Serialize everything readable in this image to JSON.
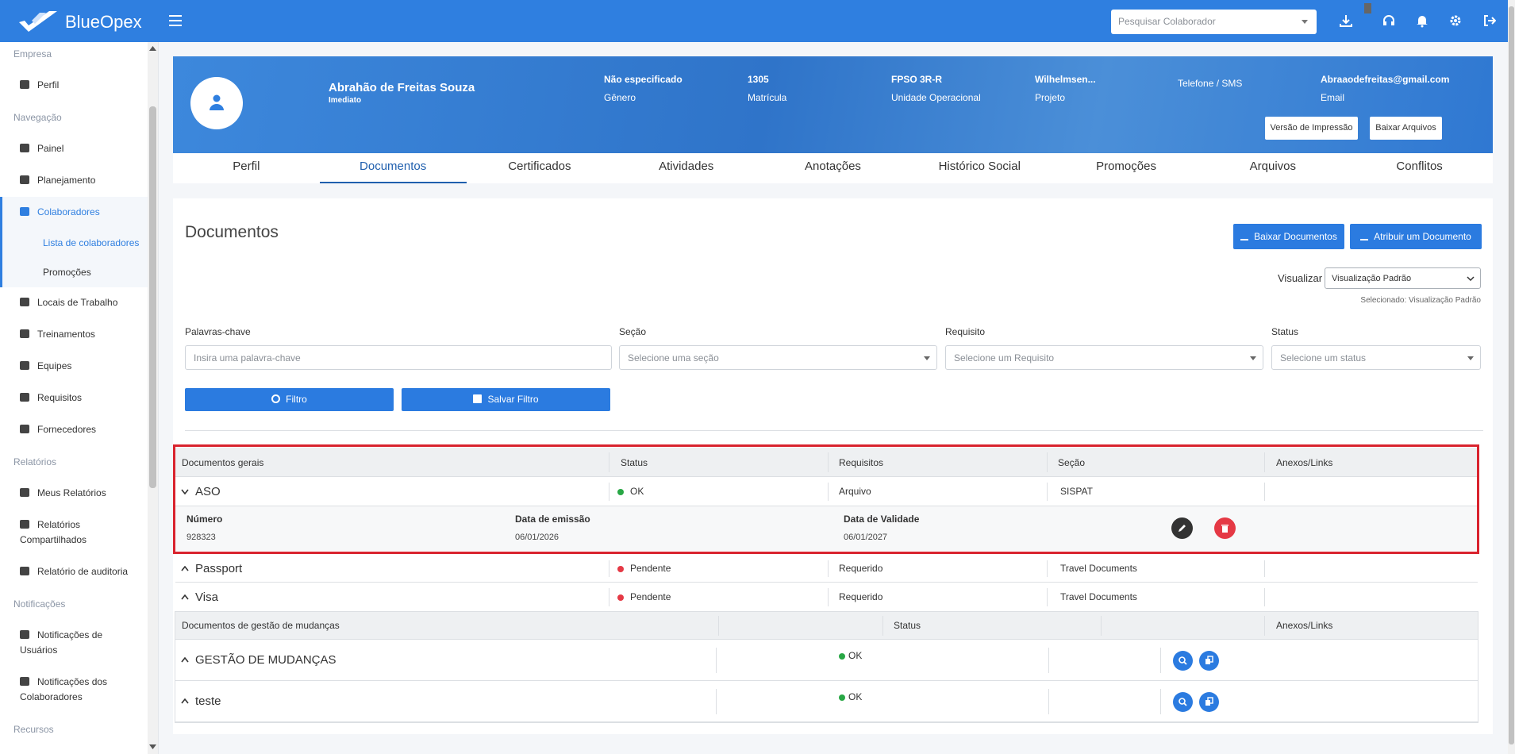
{
  "header": {
    "logo": "BlueOpex",
    "search_placeholder": "Pesquisar Colaborador"
  },
  "sidebar": {
    "sections": [
      {
        "title": "Empresa",
        "items": [
          {
            "label": "Perfil"
          }
        ]
      },
      {
        "title": "Navegação",
        "items": [
          {
            "label": "Painel"
          },
          {
            "label": "Planejamento"
          },
          {
            "label": "Colaboradores",
            "children": [
              "Lista de colaboradores",
              "Promoções"
            ]
          },
          {
            "label": "Locais de Trabalho"
          },
          {
            "label": "Treinamentos"
          },
          {
            "label": "Equipes"
          },
          {
            "label": "Requisitos"
          },
          {
            "label": "Fornecedores"
          }
        ]
      },
      {
        "title": "Relatórios",
        "items": [
          {
            "label": "Meus Relatórios"
          },
          {
            "label": "Relatórios Compartilhados"
          },
          {
            "label": "Relatório de auditoria"
          }
        ]
      },
      {
        "title": "Notificações",
        "items": [
          {
            "label": "Notificações de Usuários"
          },
          {
            "label": "Notificações dos Colaboradores"
          }
        ]
      },
      {
        "title": "Recursos",
        "items": []
      }
    ]
  },
  "profile": {
    "name": "Abrahão de Freitas Souza",
    "role": "Imediato",
    "fields": [
      {
        "value": "Não especificado",
        "label": "Gênero"
      },
      {
        "value": "1305",
        "label": "Matrícula"
      },
      {
        "value": "FPSO 3R-R",
        "label": "Unidade Operacional"
      },
      {
        "value": "Wilhelmsen...",
        "label": "Projeto"
      },
      {
        "label": "Telefone / SMS"
      },
      {
        "value": "Abraaodefreitas@gmail.com",
        "label": "Email"
      }
    ],
    "buttons": [
      "Versão de Impressão",
      "Baixar Arquivos"
    ]
  },
  "tabs": [
    "Perfil",
    "Documentos",
    "Certificados",
    "Atividades",
    "Anotações",
    "Histórico Social",
    "Promoções",
    "Arquivos",
    "Conflitos"
  ],
  "documents": {
    "title": "Documentos",
    "buttons": [
      "Baixar Documentos",
      "Atribuir um Documento"
    ],
    "view_label": "Visualizar",
    "view_value": "Visualização Padrão",
    "selected_note": "Selecionado: Visualização Padrão",
    "filters": [
      {
        "label": "Palavras-chave",
        "placeholder": "Insira uma palavra-chave"
      },
      {
        "label": "Seção",
        "placeholder": "Selecione uma seção"
      },
      {
        "label": "Requisito",
        "placeholder": "Selecione um Requisito"
      },
      {
        "label": "Status",
        "placeholder": "Selecione um status"
      }
    ],
    "filter_buttons": [
      "Filtro",
      "Salvar Filtro"
    ],
    "general_table": {
      "headers": [
        "Documentos gerais",
        "Status",
        "Requisitos",
        "Seção",
        "Anexos/Links"
      ],
      "rows": [
        {
          "name": "ASO",
          "status": "OK",
          "status_color": "#28a745",
          "requirement": "Arquivo",
          "section": "SISPAT",
          "details": {
            "labels": [
              "Número",
              "Data de emissão",
              "Data de Validade"
            ],
            "values": [
              "928323",
              "06/01/2026",
              "06/01/2027"
            ]
          }
        },
        {
          "name": "Passport",
          "status": "Pendente",
          "status_color": "#e53945",
          "requirement": "Requerido",
          "section": "Travel Documents"
        },
        {
          "name": "Visa",
          "status": "Pendente",
          "status_color": "#e53945",
          "requirement": "Requerido",
          "section": "Travel Documents"
        }
      ]
    },
    "change_table": {
      "headers": [
        "Documentos de gestão de mudanças",
        "Status",
        "Anexos/Links"
      ],
      "rows": [
        {
          "name": "GESTÃO DE MUDANÇAS",
          "status": "OK",
          "status_color": "#28a745"
        },
        {
          "name": "teste",
          "status": "OK",
          "status_color": "#28a745"
        }
      ]
    }
  }
}
